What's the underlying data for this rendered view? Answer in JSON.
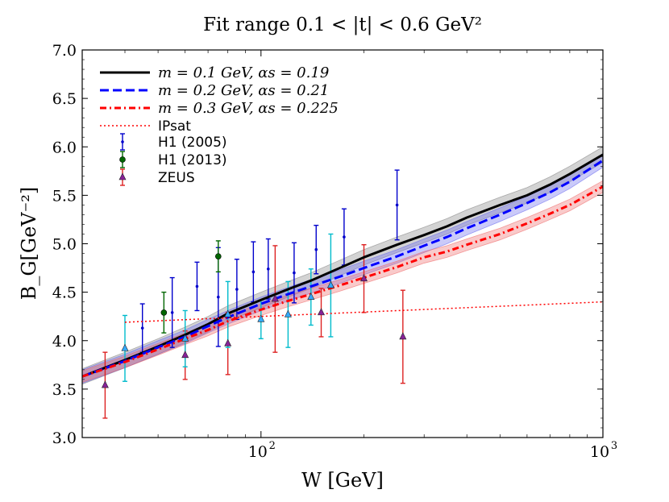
{
  "chart_data": {
    "type": "line",
    "title": "Fit range 0.1 < |t| < 0.6 GeV²",
    "xlabel": "W [GeV]",
    "ylabel": "B_G[GeV⁻²]",
    "xscale": "log",
    "xlim": [
      30,
      1000
    ],
    "ylim": [
      3.0,
      7.0
    ],
    "yticks": [
      "3.0",
      "3.5",
      "4.0",
      "4.5",
      "5.0",
      "5.5",
      "6.0",
      "6.5",
      "7.0"
    ],
    "xticks": [
      {
        "value": 100,
        "base": "10",
        "exp": "2"
      },
      {
        "value": 1000,
        "base": "10",
        "exp": "3"
      }
    ],
    "legend_position": "top-left",
    "series": [
      {
        "name": "m = 0.1 GeV, αs = 0.19",
        "color": "#000000",
        "style": "solid",
        "band_color": "#808080",
        "band_halfwidth": 0.08,
        "x": [
          30,
          40,
          50,
          60,
          70,
          80,
          100,
          120,
          140,
          170,
          200,
          250,
          300,
          350,
          400,
          500,
          600,
          700,
          800,
          1000
        ],
        "y": [
          3.63,
          3.8,
          3.94,
          4.06,
          4.17,
          4.28,
          4.42,
          4.53,
          4.62,
          4.75,
          4.86,
          4.99,
          5.09,
          5.18,
          5.27,
          5.4,
          5.5,
          5.61,
          5.72,
          5.92
        ]
      },
      {
        "name": "m = 0.2 GeV, αs = 0.21",
        "color": "#0000ff",
        "style": "dashed",
        "band_color": "#6666ee",
        "band_halfwidth": 0.07,
        "x": [
          30,
          40,
          50,
          60,
          70,
          80,
          100,
          120,
          140,
          170,
          200,
          250,
          300,
          350,
          400,
          500,
          600,
          700,
          800,
          1000
        ],
        "y": [
          3.63,
          3.79,
          3.93,
          4.04,
          4.15,
          4.24,
          4.38,
          4.48,
          4.56,
          4.66,
          4.75,
          4.87,
          4.98,
          5.07,
          5.16,
          5.3,
          5.42,
          5.53,
          5.64,
          5.86
        ]
      },
      {
        "name": "m = 0.3 GeV, αs = 0.225",
        "color": "#ff0000",
        "style": "dashdot",
        "band_color": "#ee6666",
        "band_halfwidth": 0.06,
        "x": [
          30,
          40,
          50,
          60,
          70,
          80,
          100,
          120,
          140,
          170,
          200,
          250,
          300,
          350,
          400,
          500,
          600,
          700,
          800,
          1000
        ],
        "y": [
          3.63,
          3.78,
          3.91,
          4.02,
          4.11,
          4.2,
          4.32,
          4.41,
          4.48,
          4.57,
          4.65,
          4.76,
          4.86,
          4.92,
          4.99,
          5.1,
          5.21,
          5.31,
          5.4,
          5.59
        ]
      },
      {
        "name": "IPsat",
        "color": "#ff0000",
        "style": "dotted",
        "x": [
          40,
          100,
          1000
        ],
        "y": [
          4.19,
          4.25,
          4.4
        ]
      }
    ],
    "data_sets": [
      {
        "name": "H1 (2005)",
        "color": "#0000cc",
        "marker": "dot",
        "points": [
          {
            "x": 45,
            "y": 4.13,
            "err": 0.25
          },
          {
            "x": 55,
            "y": 4.29,
            "err": 0.36
          },
          {
            "x": 65,
            "y": 4.56,
            "err": 0.25
          },
          {
            "x": 75,
            "y": 4.45,
            "err": 0.51
          },
          {
            "x": 85,
            "y": 4.53,
            "err": 0.31
          },
          {
            "x": 95,
            "y": 4.71,
            "err": 0.31
          },
          {
            "x": 105,
            "y": 4.74,
            "err": 0.31
          },
          {
            "x": 125,
            "y": 4.7,
            "err": 0.31
          },
          {
            "x": 145,
            "y": 4.94,
            "err": 0.25
          },
          {
            "x": 175,
            "y": 5.07,
            "err": 0.29
          },
          {
            "x": 250,
            "y": 5.4,
            "err": 0.36
          }
        ]
      },
      {
        "name": "H1 (2013)",
        "color": "#006600",
        "marker": "circle",
        "points": [
          {
            "x": 52,
            "y": 4.29,
            "err": 0.21
          },
          {
            "x": 75,
            "y": 4.87,
            "err": 0.16
          }
        ]
      },
      {
        "name": "ZEUS",
        "color": "#dd2222",
        "marker": "triangle",
        "marker_color": "#882299",
        "points": [
          {
            "x": 35,
            "y": 3.54,
            "err": 0.34
          },
          {
            "x": 60,
            "y": 3.85,
            "err": 0.25
          },
          {
            "x": 80,
            "y": 3.97,
            "err": 0.32
          },
          {
            "x": 110,
            "y": 4.43,
            "err": 0.55
          },
          {
            "x": 150,
            "y": 4.29,
            "err": 0.25
          },
          {
            "x": 200,
            "y": 4.64,
            "err": 0.35
          },
          {
            "x": 260,
            "y": 4.04,
            "err": 0.48
          }
        ]
      },
      {
        "name": "",
        "color": "#00bbcc",
        "marker": "triangle",
        "marker_color": "#33aaff",
        "points": [
          {
            "x": 40,
            "y": 3.92,
            "err": 0.34
          },
          {
            "x": 60,
            "y": 4.02,
            "err": 0.29
          },
          {
            "x": 80,
            "y": 4.27,
            "err": 0.34
          },
          {
            "x": 100,
            "y": 4.22,
            "err": 0.2
          },
          {
            "x": 120,
            "y": 4.27,
            "err": 0.34
          },
          {
            "x": 140,
            "y": 4.45,
            "err": 0.29
          },
          {
            "x": 160,
            "y": 4.57,
            "err": 0.53
          }
        ]
      }
    ]
  }
}
